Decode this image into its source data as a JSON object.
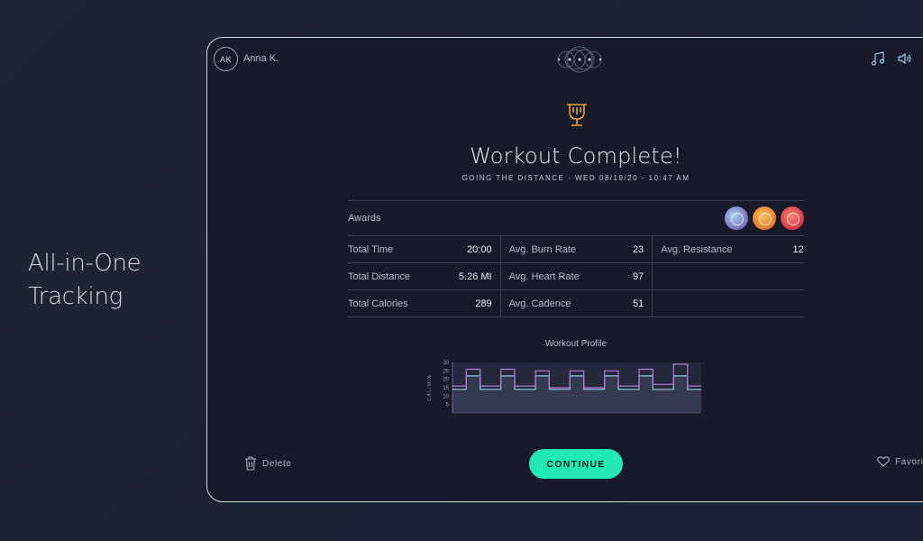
{
  "tagline": "All-in-One Tracking",
  "user": {
    "initials": "AK",
    "name": "Anna K."
  },
  "icons": {
    "music": "music-note-icon",
    "volume": "speaker-icon",
    "trophy": "trophy-icon",
    "delete": "trash-icon",
    "favorite": "heart-icon"
  },
  "header": {
    "title": "Workout Complete!",
    "subtitle": "GOING THE DISTANCE - WED 08/19/20 - 10:47 AM"
  },
  "awards": {
    "label": "Awards",
    "badges": [
      "badge-1",
      "badge-2",
      "badge-3"
    ]
  },
  "stats": {
    "columns": [
      [
        {
          "label": "Total Time",
          "value": "20:00"
        },
        {
          "label": "Total Distance",
          "value": "5.26 MI"
        },
        {
          "label": "Total Calories",
          "value": "289"
        }
      ],
      [
        {
          "label": "Avg. Burn Rate",
          "value": "23"
        },
        {
          "label": "Avg. Heart Rate",
          "value": "97"
        },
        {
          "label": "Avg. Cadence",
          "value": "51"
        }
      ],
      [
        {
          "label": "Avg. Resistance",
          "value": "12"
        },
        {
          "label": "",
          "value": ""
        },
        {
          "label": "",
          "value": ""
        }
      ]
    ]
  },
  "profile": {
    "title": "Workout Profile",
    "ylabel": "CAL/MIN",
    "yticks": [
      "30",
      "25",
      "20",
      "15",
      "10",
      "5"
    ]
  },
  "chart_data": {
    "type": "line",
    "title": "Workout Profile",
    "ylabel": "CAL/MIN",
    "ylim": [
      0,
      30
    ],
    "series": [
      {
        "values": [
          14,
          14,
          22,
          22,
          14,
          14,
          14,
          22,
          22,
          14,
          14,
          14,
          22,
          22,
          14,
          14,
          14,
          22,
          22,
          14,
          14,
          14,
          22,
          22,
          14,
          14,
          14,
          22,
          22,
          14,
          14,
          14,
          22,
          22,
          14,
          14
        ]
      },
      {
        "values": [
          16,
          16,
          26,
          26,
          16,
          16,
          16,
          26,
          26,
          16,
          16,
          16,
          25,
          25,
          15,
          15,
          15,
          25,
          25,
          15,
          15,
          15,
          25,
          25,
          16,
          16,
          16,
          26,
          26,
          17,
          17,
          17,
          29,
          29,
          16,
          16
        ]
      }
    ]
  },
  "colors": {
    "accent": "#22e8b4",
    "series_a": "#8fc4e6",
    "series_b": "#b27ad9"
  },
  "actions": {
    "delete": "Delete",
    "continue": "CONTINUE",
    "favorite": "Favorite"
  }
}
